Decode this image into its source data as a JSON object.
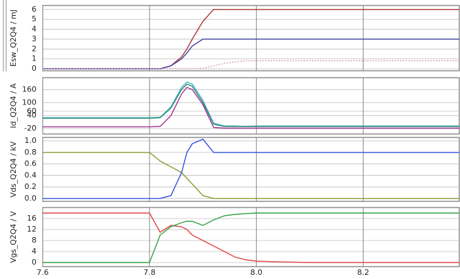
{
  "chart_data": [
    {
      "type": "line",
      "ylabel": "Esw_Q2Q4 / mJ",
      "x": [
        7.6,
        7.78,
        7.8,
        7.82,
        7.84,
        7.86,
        7.87,
        7.88,
        7.9,
        7.92,
        7.94,
        7.96,
        7.98,
        8.0,
        8.05,
        8.1,
        8.2,
        8.38
      ],
      "series": [
        {
          "color": "#a83232",
          "values": [
            0,
            0,
            0,
            0,
            0.3,
            1.2,
            2,
            3,
            4.8,
            6,
            6,
            6,
            6,
            6,
            6,
            6,
            6,
            6
          ]
        },
        {
          "color": "#3c3c9c",
          "values": [
            0,
            0,
            0,
            0,
            0.3,
            1,
            1.6,
            2.3,
            3,
            3,
            3,
            3,
            3,
            3,
            3,
            3,
            3,
            3
          ]
        },
        {
          "color": "#d89ac0",
          "dashed": true,
          "values": [
            0,
            0,
            0,
            0,
            0,
            0,
            0,
            0,
            0.05,
            0.3,
            0.55,
            0.7,
            0.8,
            0.8,
            0.8,
            0.8,
            0.8,
            0.8
          ]
        }
      ],
      "xlim": [
        7.6,
        8.38
      ],
      "xticks": [
        7.6,
        7.8,
        8,
        8.2
      ],
      "ylim": [
        -0.2,
        6.4
      ],
      "yticks": [
        0,
        1,
        2,
        3,
        4,
        5,
        6
      ],
      "grid": true
    },
    {
      "type": "line",
      "ylabel": "Id_Q2Q4 / A",
      "x": [
        7.6,
        7.78,
        7.8,
        7.82,
        7.84,
        7.86,
        7.87,
        7.88,
        7.9,
        7.92,
        7.94,
        7.96,
        7.98,
        8.0,
        8.05,
        8.1,
        8.2,
        8.38
      ],
      "series": [
        {
          "color": "#48b4c0",
          "values": [
            30,
            30,
            30,
            32,
            80,
            170,
            195,
            185,
            110,
            5,
            -8,
            -8,
            -10,
            -8,
            -8,
            -8,
            -8,
            -8
          ]
        },
        {
          "color": "#2a8a7a",
          "values": [
            28,
            28,
            28,
            30,
            75,
            160,
            185,
            175,
            100,
            0,
            -10,
            -10,
            -10,
            -10,
            -10,
            -10,
            -10,
            -10
          ]
        },
        {
          "color": "#a03090",
          "values": [
            -12,
            -12,
            -12,
            -10,
            40,
            140,
            170,
            160,
            90,
            -15,
            -18,
            -18,
            -18,
            -18,
            -18,
            -18,
            -18,
            -18
          ]
        }
      ],
      "xlim": [
        7.6,
        8.38
      ],
      "xticks": [
        7.6,
        7.8,
        8,
        8.2
      ],
      "ylim": [
        -45,
        215
      ],
      "yticks": [
        -20,
        40,
        60,
        100,
        160
      ],
      "grid": true
    },
    {
      "type": "line",
      "ylabel": "Vds_Q2Q4 / kV",
      "x": [
        7.6,
        7.78,
        7.8,
        7.82,
        7.84,
        7.86,
        7.87,
        7.88,
        7.9,
        7.92,
        7.94,
        7.96,
        7.98,
        8.0,
        8.05,
        8.1,
        8.2,
        8.38
      ],
      "series": [
        {
          "color": "#8a9a30",
          "values": [
            0.8,
            0.8,
            0.8,
            0.65,
            0.55,
            0.45,
            0.35,
            0.25,
            0.05,
            0,
            0,
            0,
            0,
            0,
            0,
            0,
            0,
            0
          ]
        },
        {
          "color": "#3050e0",
          "values": [
            0,
            0,
            0,
            0,
            0.05,
            0.45,
            0.8,
            0.95,
            1.03,
            0.8,
            0.8,
            0.8,
            0.8,
            0.8,
            0.8,
            0.8,
            0.8,
            0.8
          ]
        }
      ],
      "xlim": [
        7.6,
        8.38
      ],
      "xticks": [
        7.6,
        7.8,
        8,
        8.2
      ],
      "ylim": [
        -0.05,
        1.06
      ],
      "yticks": [
        {
          "value": 0,
          "label": "0.0"
        },
        0.2,
        0.4,
        0.6,
        0.8,
        {
          "value": 1,
          "label": "1.0"
        }
      ],
      "grid": true
    },
    {
      "type": "line",
      "ylabel": "Vgs_Q2Q4 / V",
      "x": [
        7.6,
        7.78,
        7.8,
        7.82,
        7.84,
        7.86,
        7.87,
        7.88,
        7.9,
        7.92,
        7.94,
        7.96,
        7.98,
        8.0,
        8.05,
        8.1,
        8.2,
        8.38
      ],
      "series": [
        {
          "color": "#e04444",
          "values": [
            18,
            18,
            18,
            11,
            13.5,
            13,
            12,
            10,
            8,
            6,
            4,
            2,
            1,
            0.5,
            0.2,
            0,
            0,
            0
          ]
        },
        {
          "color": "#30a040",
          "values": [
            0,
            0,
            0,
            10,
            13,
            14.5,
            15,
            15,
            13.5,
            15.5,
            17,
            17.5,
            17.8,
            18,
            18,
            18,
            18,
            18
          ]
        }
      ],
      "xlim": [
        7.6,
        8.38
      ],
      "xticks": [
        7.6,
        7.8,
        {
          "value": 8,
          "label": "8.0"
        },
        8.2
      ],
      "ylim": [
        -1.5,
        20
      ],
      "yticks": [
        0,
        4,
        8,
        12,
        16
      ],
      "grid": true
    }
  ]
}
